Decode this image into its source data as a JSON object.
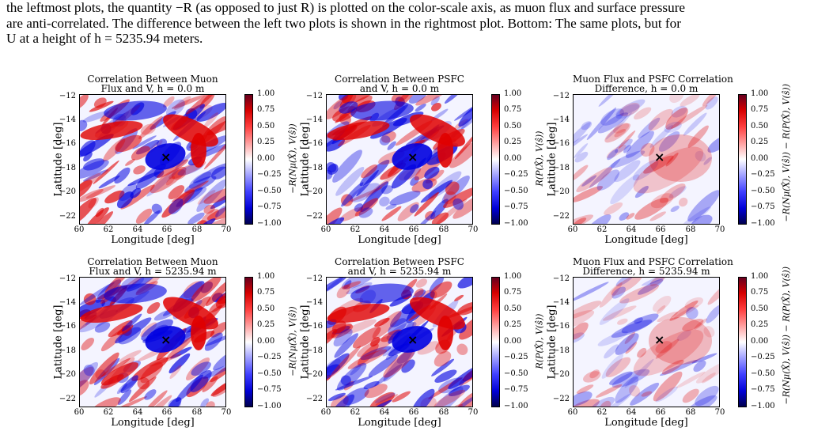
{
  "caption": {
    "line1": "the leftmost plots, the quantity −R (as opposed to just R) is plotted on the color-scale axis, as muon flux and surface pressure",
    "line2": "are anti-correlated. The difference between the left two plots is shown in the rightmost plot. Bottom: The same plots, but for",
    "line3": "U at a height of h = 5235.94 meters."
  },
  "axis": {
    "xlabel": "Longitude [deg]",
    "ylabel": "Latitude [deg]",
    "xticks": [
      "60",
      "62",
      "64",
      "66",
      "68",
      "70"
    ],
    "yticks": [
      "−12",
      "−14",
      "−16",
      "−18",
      "−20",
      "−22"
    ],
    "cticks": [
      "1.00",
      "0.75",
      "0.50",
      "0.25",
      "0.00",
      "−0.25",
      "−0.50",
      "−0.75",
      "−1.00"
    ],
    "marker": "×"
  },
  "colormap": {
    "high": "#67001f",
    "mid": "#ffffff",
    "low": "#00004e",
    "positive": "#e00000",
    "negative": "#0000e0"
  },
  "panels": [
    {
      "title1": "Correlation Between Muon",
      "title2": "Flux and V, h = 0.0 m",
      "cbar_label": "−R(Nμ(X̂), V(ŝ))"
    },
    {
      "title1": "Correlation Between PSFC",
      "title2": "and V, h = 0.0 m",
      "cbar_label": "R(P(X̂), V(ŝ))"
    },
    {
      "title1": "Muon Flux and PSFC Correlation",
      "title2": "Difference, h = 0.0 m",
      "cbar_label": "−R(Nμ(X̂), V(ŝ)) − R(P(X̂), V(ŝ))"
    },
    {
      "title1": "Correlation Between Muon",
      "title2": "Flux and V, h = 5235.94 m",
      "cbar_label": "−R(Nμ(X̂), V(ŝ))"
    },
    {
      "title1": "Correlation Between PSFC",
      "title2": "and V, h = 5235.94 m",
      "cbar_label": "R(P(X̂), V(ŝ))"
    },
    {
      "title1": "Muon Flux and PSFC Correlation",
      "title2": "Difference, h = 5235.94 m",
      "cbar_label": "−R(Nμ(X̂), V(ŝ)) − R(P(X̂), V(ŝ))"
    }
  ]
}
